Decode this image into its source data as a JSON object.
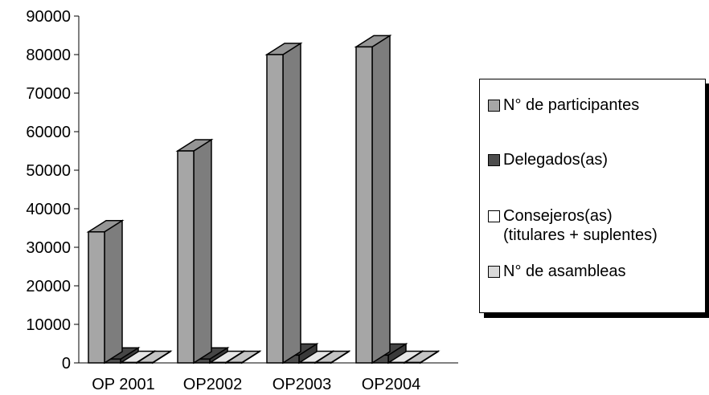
{
  "chart_data": {
    "type": "bar",
    "style": "3d-clustered-column",
    "categories": [
      "OP 2001",
      "OP2002",
      "OP2003",
      "OP2004"
    ],
    "series": [
      {
        "name": "N° de participantes",
        "color": "#a6a6a6",
        "values": [
          34000,
          55000,
          80000,
          82000
        ]
      },
      {
        "name": "Delegados(as)",
        "color": "#4d4d4d",
        "values": [
          1000,
          1000,
          2000,
          2000
        ]
      },
      {
        "name": "Consejeros(as)\n(titulares + suplentes)",
        "color": "#ffffff",
        "values": [
          100,
          100,
          100,
          100
        ]
      },
      {
        "name": "N° de asambleas",
        "color": "#d9d9d9",
        "values": [
          100,
          100,
          100,
          100
        ]
      }
    ],
    "ylim": [
      0,
      90000
    ],
    "yticks": [
      "0",
      "10000",
      "20000",
      "30000",
      "40000",
      "50000",
      "60000",
      "70000",
      "80000",
      "90000"
    ],
    "grid": false,
    "legend_position": "right"
  }
}
